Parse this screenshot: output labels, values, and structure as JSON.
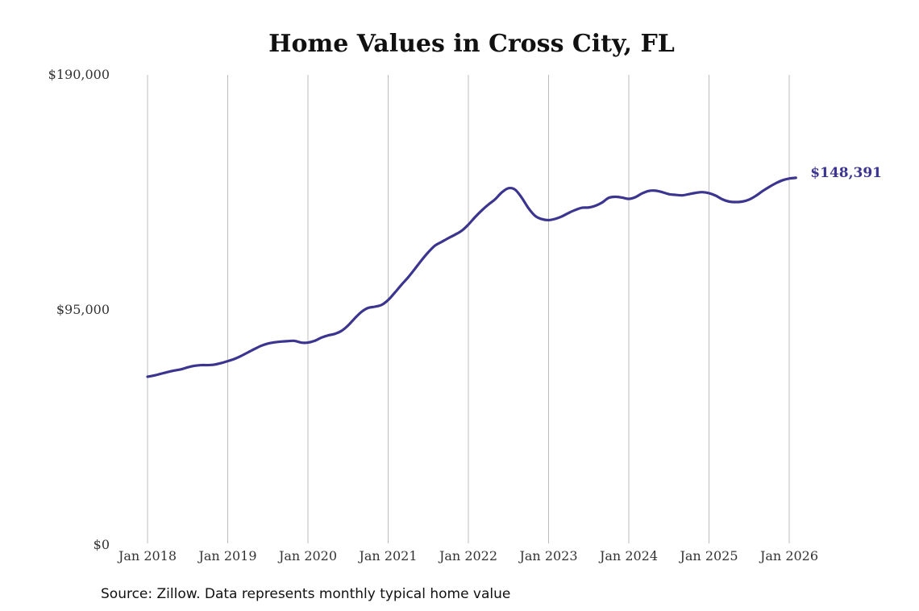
{
  "chart_data": {
    "type": "line",
    "title": "Home Values in Cross City, FL",
    "xlabel": "",
    "ylabel": "",
    "source": "Source: Zillow. Data represents monthly typical home value",
    "x_ticks": [
      "Jan 2018",
      "Jan 2019",
      "Jan 2020",
      "Jan 2021",
      "Jan 2022",
      "Jan 2023",
      "Jan 2024",
      "Jan 2025",
      "Jan 2026"
    ],
    "y_ticks": [
      "$0",
      "$95,000",
      "$190,000"
    ],
    "y_tick_values": [
      0,
      95000,
      190000
    ],
    "ylim": [
      0,
      190000
    ],
    "x_range": [
      "2018-01",
      "2026-02"
    ],
    "grid": "vertical",
    "line_color": "#3b3590",
    "end_label": "$148,391",
    "series": [
      {
        "x": [
          "2018-01",
          "2018-02",
          "2018-03",
          "2018-04",
          "2018-05",
          "2018-06",
          "2018-07",
          "2018-08",
          "2018-09",
          "2018-10",
          "2018-11",
          "2018-12",
          "2019-01",
          "2019-02",
          "2019-03",
          "2019-04",
          "2019-05",
          "2019-06",
          "2019-07",
          "2019-08",
          "2019-09",
          "2019-10",
          "2019-11",
          "2019-12",
          "2020-01",
          "2020-02",
          "2020-03",
          "2020-04",
          "2020-05",
          "2020-06",
          "2020-07",
          "2020-08",
          "2020-09",
          "2020-10",
          "2020-11",
          "2020-12",
          "2021-01",
          "2021-02",
          "2021-03",
          "2021-04",
          "2021-05",
          "2021-06",
          "2021-07",
          "2021-08",
          "2021-09",
          "2021-10",
          "2021-11",
          "2021-12",
          "2022-01",
          "2022-02",
          "2022-03",
          "2022-04",
          "2022-05",
          "2022-06",
          "2022-07",
          "2022-08",
          "2022-09",
          "2022-10",
          "2022-11",
          "2022-12",
          "2023-01",
          "2023-02",
          "2023-03",
          "2023-04",
          "2023-05",
          "2023-06",
          "2023-07",
          "2023-08",
          "2023-09",
          "2023-10",
          "2023-11",
          "2023-12",
          "2024-01",
          "2024-02",
          "2024-03",
          "2024-04",
          "2024-05",
          "2024-06",
          "2024-07",
          "2024-08",
          "2024-09",
          "2024-10",
          "2024-11",
          "2024-12",
          "2025-01",
          "2025-02",
          "2025-03",
          "2025-04",
          "2025-05",
          "2025-06",
          "2025-07",
          "2025-08",
          "2025-09",
          "2025-10",
          "2025-11",
          "2025-12",
          "2026-01",
          "2026-02"
        ],
        "values": [
          68000,
          68500,
          69200,
          69900,
          70500,
          71000,
          71800,
          72400,
          72700,
          72700,
          72900,
          73500,
          74300,
          75200,
          76400,
          77800,
          79200,
          80500,
          81400,
          81900,
          82200,
          82400,
          82500,
          81800,
          81800,
          82500,
          83800,
          84700,
          85300,
          86500,
          88700,
          91600,
          94200,
          95800,
          96300,
          97000,
          99000,
          102000,
          105200,
          108200,
          111600,
          115100,
          118300,
          121000,
          122500,
          124000,
          125400,
          127000,
          129500,
          132500,
          135200,
          137600,
          139700,
          142500,
          144200,
          143600,
          140300,
          136100,
          133000,
          131700,
          131300,
          131800,
          132800,
          134200,
          135400,
          136300,
          136400,
          137100,
          138400,
          140300,
          140700,
          140400,
          139900,
          140600,
          142100,
          143100,
          143200,
          142600,
          141800,
          141500,
          141300,
          141800,
          142300,
          142600,
          142200,
          141200,
          139700,
          138800,
          138600,
          138800,
          139600,
          141100,
          143000,
          144700,
          146200,
          147400,
          148100,
          148391
        ]
      }
    ]
  }
}
